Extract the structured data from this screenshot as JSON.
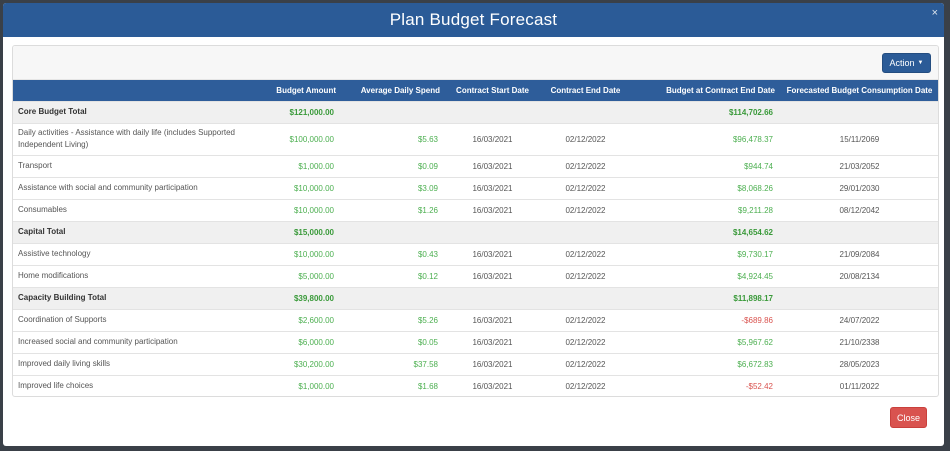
{
  "modal": {
    "title": "Plan Budget Forecast",
    "close_glyph": "×"
  },
  "toolbar": {
    "action_label": "Action"
  },
  "table": {
    "headers": {
      "name": "",
      "budget": "Budget Amount",
      "avg": "Average Daily Spend",
      "start": "Contract Start Date",
      "end": "Contract End Date",
      "at_end": "Budget at Contract End Date",
      "forecast": "Forecasted Budget Consumption Date"
    },
    "rows": [
      {
        "type": "total",
        "name": "Core Budget Total",
        "budget": "$121,000.00",
        "avg": "",
        "start": "",
        "end": "",
        "at_end": "$114,702.66",
        "forecast": ""
      },
      {
        "type": "item",
        "name": "Daily activities - Assistance with daily life (includes Supported Independent Living)",
        "budget": "$100,000.00",
        "avg": "$5.63",
        "start": "16/03/2021",
        "end": "02/12/2022",
        "at_end": "$96,478.37",
        "forecast": "15/11/2069"
      },
      {
        "type": "item",
        "name": "Transport",
        "budget": "$1,000.00",
        "avg": "$0.09",
        "start": "16/03/2021",
        "end": "02/12/2022",
        "at_end": "$944.74",
        "forecast": "21/03/2052"
      },
      {
        "type": "item",
        "name": "Assistance with social and community participation",
        "budget": "$10,000.00",
        "avg": "$3.09",
        "start": "16/03/2021",
        "end": "02/12/2022",
        "at_end": "$8,068.26",
        "forecast": "29/01/2030"
      },
      {
        "type": "item",
        "name": "Consumables",
        "budget": "$10,000.00",
        "avg": "$1.26",
        "start": "16/03/2021",
        "end": "02/12/2022",
        "at_end": "$9,211.28",
        "forecast": "08/12/2042"
      },
      {
        "type": "total",
        "name": "Capital Total",
        "budget": "$15,000.00",
        "avg": "",
        "start": "",
        "end": "",
        "at_end": "$14,654.62",
        "forecast": ""
      },
      {
        "type": "item",
        "name": "Assistive technology",
        "budget": "$10,000.00",
        "avg": "$0.43",
        "start": "16/03/2021",
        "end": "02/12/2022",
        "at_end": "$9,730.17",
        "forecast": "21/09/2084"
      },
      {
        "type": "item",
        "name": "Home modifications",
        "budget": "$5,000.00",
        "avg": "$0.12",
        "start": "16/03/2021",
        "end": "02/12/2022",
        "at_end": "$4,924.45",
        "forecast": "20/08/2134"
      },
      {
        "type": "total",
        "name": "Capacity Building Total",
        "budget": "$39,800.00",
        "avg": "",
        "start": "",
        "end": "",
        "at_end": "$11,898.17",
        "forecast": ""
      },
      {
        "type": "item",
        "name": "Coordination of Supports",
        "budget": "$2,600.00",
        "avg": "$5.26",
        "start": "16/03/2021",
        "end": "02/12/2022",
        "at_end": "-$689.86",
        "forecast": "24/07/2022",
        "negative": true
      },
      {
        "type": "item",
        "name": "Increased social and community participation",
        "budget": "$6,000.00",
        "avg": "$0.05",
        "start": "16/03/2021",
        "end": "02/12/2022",
        "at_end": "$5,967.62",
        "forecast": "21/10/2338"
      },
      {
        "type": "item",
        "name": "Improved daily living skills",
        "budget": "$30,200.00",
        "avg": "$37.58",
        "start": "16/03/2021",
        "end": "02/12/2022",
        "at_end": "$6,672.83",
        "forecast": "28/05/2023"
      },
      {
        "type": "item",
        "name": "Improved life choices",
        "budget": "$1,000.00",
        "avg": "$1.68",
        "start": "16/03/2021",
        "end": "02/12/2022",
        "at_end": "-$52.42",
        "forecast": "01/11/2022",
        "negative": true
      }
    ]
  },
  "footer": {
    "close_label": "Close"
  },
  "colors": {
    "header_blue": "#2b5b97",
    "positive_green": "#4caf50",
    "negative_red": "#d9534f",
    "close_button": "#d9534f"
  }
}
